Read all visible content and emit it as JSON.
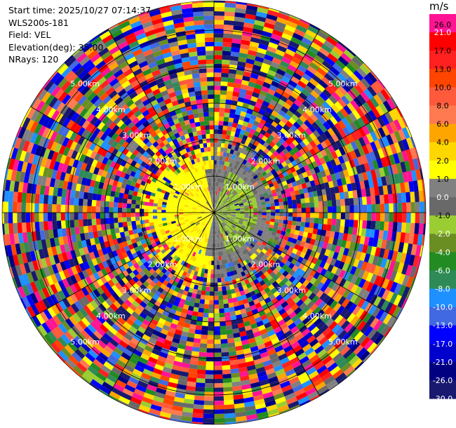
{
  "header": {
    "start_time": "Start time: 2025/10/27 07:14:37",
    "instrument": "WLS200s-181",
    "field": "Field: VEL",
    "elevation": "Elevation(deg): 35.00",
    "nrays": "NRays: 120"
  },
  "chart_data": {
    "type": "heatmap",
    "projection": "polar-ppi",
    "field": "VEL",
    "units": "m/s",
    "n_rays": 120,
    "elevation_deg": 35.0,
    "range_rings_km": [
      {
        "value": 1.0,
        "label": "1.00km"
      },
      {
        "value": 2.0,
        "label": "2.00km"
      },
      {
        "value": 3.0,
        "label": "3.00km"
      },
      {
        "value": 4.0,
        "label": "4.00km"
      },
      {
        "value": 5.0,
        "label": "5.00km"
      }
    ],
    "max_range_km": 5.8,
    "near_field_pattern": "positive 2–4 m/s (yellow) west of radar, near-zero gray and slightly negative (olive) east; noisy random velocities beyond ~1.5 km",
    "colorbar": {
      "title": "m/s",
      "levels": [
        {
          "label": "26.0",
          "color": "#ff1493"
        },
        {
          "label": "21.0",
          "color": "#ff0000"
        },
        {
          "label": "17.0",
          "color": "#ff2020"
        },
        {
          "label": "13.0",
          "color": "#ff4500"
        },
        {
          "label": "10.0",
          "color": "#ff5a3c"
        },
        {
          "label": "8.0",
          "color": "#ff7a50"
        },
        {
          "label": "6.0",
          "color": "#ffa500"
        },
        {
          "label": "4.0",
          "color": "#ffd700"
        },
        {
          "label": "2.0",
          "color": "#ffff00"
        },
        {
          "label": "1.0",
          "color": "#808080"
        },
        {
          "label": "0.0",
          "color": "#696969"
        },
        {
          "label": "-1.0",
          "color": "#9acd32"
        },
        {
          "label": "-2.0",
          "color": "#6b8e23"
        },
        {
          "label": "-4.0",
          "color": "#228b22"
        },
        {
          "label": "-6.0",
          "color": "#2e8b57"
        },
        {
          "label": "-8.0",
          "color": "#1e90ff"
        },
        {
          "label": "-10.0",
          "color": "#4169e1"
        },
        {
          "label": "-13.0",
          "color": "#0000ff"
        },
        {
          "label": "-17.0",
          "color": "#0000cd"
        },
        {
          "label": "-21.0",
          "color": "#000080"
        },
        {
          "label": "-26.0",
          "color": "#191970"
        },
        {
          "label": "-30.0",
          "color": "#191970"
        }
      ]
    }
  }
}
